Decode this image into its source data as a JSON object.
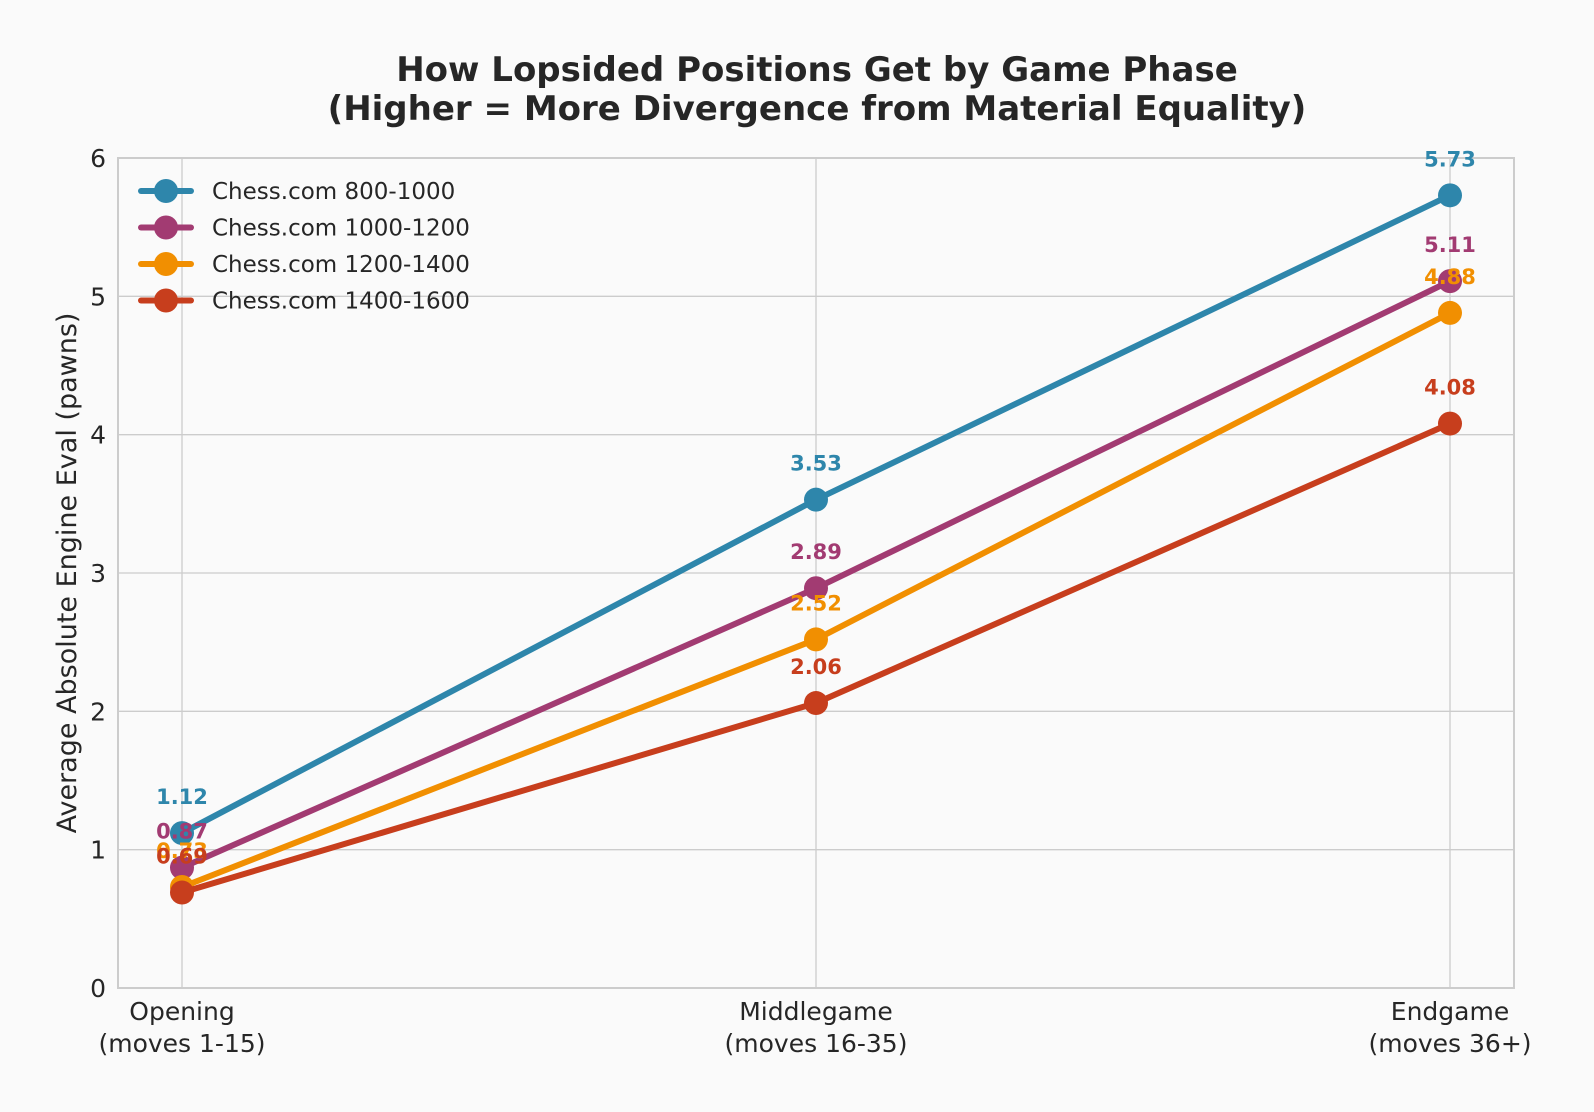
{
  "chart_data": {
    "type": "line",
    "title_lines": [
      "How Lopsided Positions Get by Game Phase",
      "(Higher = More Divergence from Material Equality)"
    ],
    "xlabel": "",
    "ylabel": "Average Absolute Engine Eval (pawns)",
    "categories": [
      [
        "Opening",
        "(moves 1-15)"
      ],
      [
        "Middlegame",
        "(moves 16-35)"
      ],
      [
        "Endgame",
        "(moves 36+)"
      ]
    ],
    "ylim": [
      0,
      6
    ],
    "yticks": [
      "0",
      "1",
      "2",
      "3",
      "4",
      "5",
      "6"
    ],
    "grid": true,
    "legend_position": "top-left",
    "series": [
      {
        "name": "Chess.com 800-1000",
        "color": "#2e86ab",
        "values": [
          1.12,
          3.53,
          5.73
        ],
        "labels": [
          "1.12",
          "3.53",
          "5.73"
        ]
      },
      {
        "name": "Chess.com 1000-1200",
        "color": "#a23b72",
        "values": [
          0.87,
          2.89,
          5.11
        ],
        "labels": [
          "0.87",
          "2.89",
          "5.11"
        ]
      },
      {
        "name": "Chess.com 1200-1400",
        "color": "#f18f01",
        "values": [
          0.73,
          2.52,
          4.88
        ],
        "labels": [
          "0.73",
          "2.52",
          "4.88"
        ]
      },
      {
        "name": "Chess.com 1400-1600",
        "color": "#c73e1d",
        "values": [
          0.69,
          2.06,
          4.08
        ],
        "labels": [
          "0.69",
          "2.06",
          "4.08"
        ]
      }
    ]
  }
}
